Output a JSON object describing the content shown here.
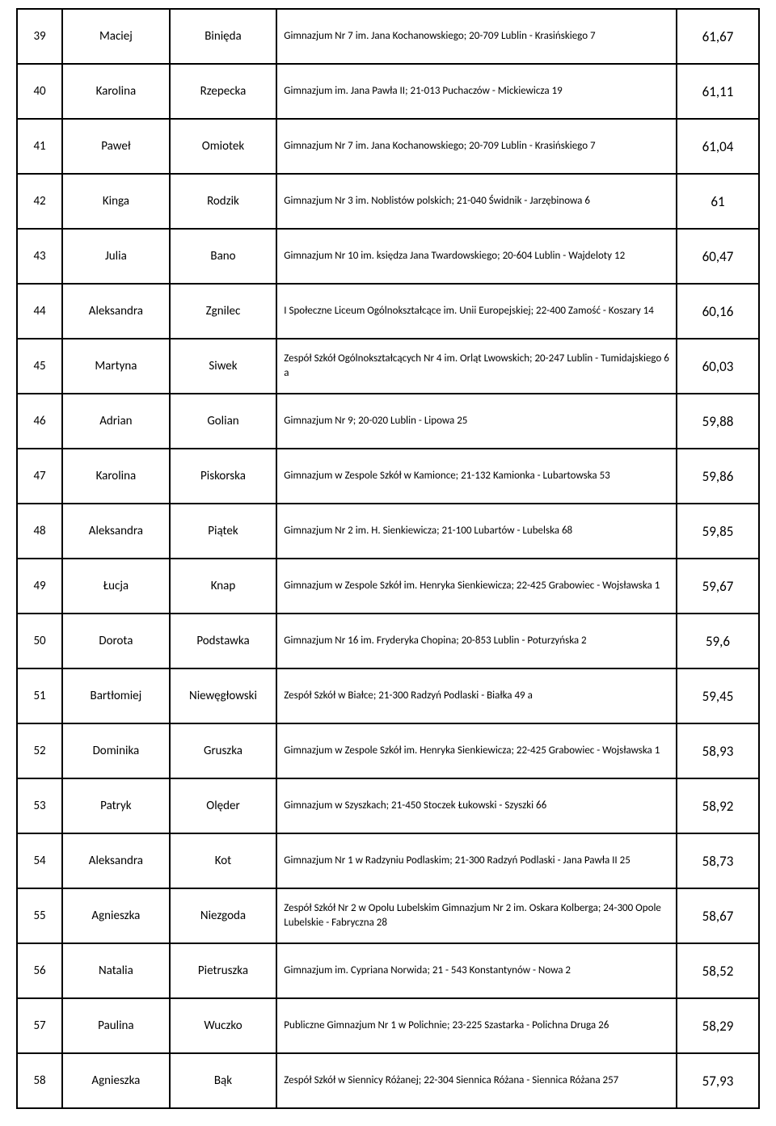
{
  "table": {
    "rows": [
      {
        "num": "39",
        "first": "Maciej",
        "last": "Binięda",
        "school": "Gimnazjum Nr 7 im. Jana Kochanowskiego; 20-709 Lublin - Krasińskiego 7",
        "score": "61,67"
      },
      {
        "num": "40",
        "first": "Karolina",
        "last": "Rzepecka",
        "school": "Gimnazjum im. Jana Pawła II; 21-013 Puchaczów - Mickiewicza 19",
        "score": "61,11"
      },
      {
        "num": "41",
        "first": "Paweł",
        "last": "Omiotek",
        "school": "Gimnazjum Nr 7 im. Jana Kochanowskiego; 20-709 Lublin - Krasińskiego 7",
        "score": "61,04"
      },
      {
        "num": "42",
        "first": "Kinga",
        "last": "Rodzik",
        "school": "Gimnazjum Nr 3 im. Noblistów polskich; 21-040 Świdnik - Jarzębinowa 6",
        "score": "61"
      },
      {
        "num": "43",
        "first": "Julia",
        "last": "Bano",
        "school": "Gimnazjum Nr 10 im. księdza Jana Twardowskiego; 20-604 Lublin - Wajdeloty 12",
        "score": "60,47"
      },
      {
        "num": "44",
        "first": "Aleksandra",
        "last": "Zgnilec",
        "school": "I Społeczne Liceum Ogólnokształcące im. Unii Europejskiej; 22-400 Zamość - Koszary 14",
        "score": "60,16"
      },
      {
        "num": "45",
        "first": "Martyna",
        "last": "Siwek",
        "school": "Zespół Szkół Ogólnokształcących Nr 4 im. Orląt Lwowskich; 20-247 Lublin - Tumidajskiego 6 a",
        "score": "60,03"
      },
      {
        "num": "46",
        "first": "Adrian",
        "last": "Golian",
        "school": "Gimnazjum Nr 9; 20-020 Lublin - Lipowa 25",
        "score": "59,88"
      },
      {
        "num": "47",
        "first": "Karolina",
        "last": "Piskorska",
        "school": "Gimnazjum w Zespole Szkół w Kamionce; 21-132 Kamionka - Lubartowska 53",
        "score": "59,86"
      },
      {
        "num": "48",
        "first": "Aleksandra",
        "last": "Piątek",
        "school": "Gimnazjum Nr 2 im. H. Sienkiewicza; 21-100 Lubartów - Lubelska 68",
        "score": "59,85"
      },
      {
        "num": "49",
        "first": "Łucja",
        "last": "Knap",
        "school": "Gimnazjum w Zespole Szkół im. Henryka Sienkiewicza; 22-425  Grabowiec - Wojsławska 1",
        "score": "59,67"
      },
      {
        "num": "50",
        "first": "Dorota",
        "last": "Podstawka",
        "school": "Gimnazjum Nr 16 im. Fryderyka Chopina; 20-853 Lublin - Poturzyńska 2",
        "score": "59,6"
      },
      {
        "num": "51",
        "first": "Bartłomiej",
        "last": "Niewęgłowski",
        "school": "Zespół Szkół w Białce; 21-300 Radzyń Podlaski - Białka 49 a",
        "score": "59,45"
      },
      {
        "num": "52",
        "first": "Dominika",
        "last": "Gruszka",
        "school": "Gimnazjum w Zespole Szkół im. Henryka Sienkiewicza; 22-425  Grabowiec - Wojsławska 1",
        "score": "58,93"
      },
      {
        "num": "53",
        "first": "Patryk",
        "last": "Olęder",
        "school": "Gimnazjum w Szyszkach; 21-450 Stoczek Łukowski - Szyszki 66",
        "score": "58,92"
      },
      {
        "num": "54",
        "first": "Aleksandra",
        "last": "Kot",
        "school": "Gimnazjum Nr 1 w Radzyniu Podlaskim; 21-300 Radzyń Podlaski - Jana Pawła II 25",
        "score": "58,73"
      },
      {
        "num": "55",
        "first": "Agnieszka",
        "last": "Niezgoda",
        "school": "Zespół Szkół Nr 2 w Opolu Lubelskim Gimnazjum Nr 2 im. Oskara Kolberga; 24-300 Opole Lubelskie - Fabryczna 28",
        "score": "58,67"
      },
      {
        "num": "56",
        "first": "Natalia",
        "last": "Pietruszka",
        "school": "Gimnazjum im. Cypriana Norwida; 21 - 543 Konstantynów - Nowa 2",
        "score": "58,52"
      },
      {
        "num": "57",
        "first": "Paulina",
        "last": "Wuczko",
        "school": "Publiczne Gimnazjum Nr 1 w Polichnie; 23-225 Szastarka - Polichna Druga 26",
        "score": "58,29"
      },
      {
        "num": "58",
        "first": "Agnieszka",
        "last": "Bąk",
        "school": "Zespół Szkół w Siennicy Różanej; 22-304 Siennica Różana - Siennica Różana 257",
        "score": "57,93"
      }
    ]
  }
}
